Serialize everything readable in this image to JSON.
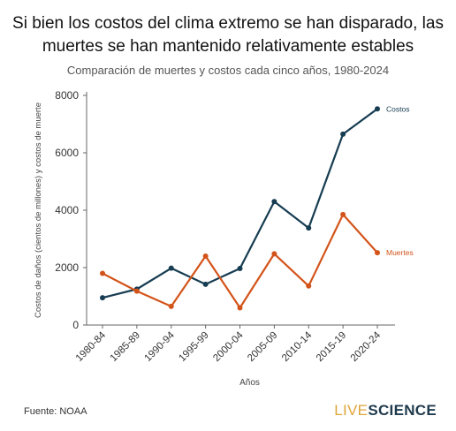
{
  "header": {
    "title_line1": "Si bien los costos del clima extremo se han disparado, las",
    "title_line2": "muertes se han mantenido relativamente estables",
    "subtitle": "Comparación de muertes y costos cada cinco años, 1980-2024"
  },
  "footer": {
    "source": "Fuente: NOAA",
    "logo_live": "LIVE",
    "logo_science": "SCIENCE"
  },
  "colors": {
    "costos": "#173d52",
    "muertes": "#d3541a",
    "axis": "#666666",
    "grid": "#eeeeee"
  },
  "chart_data": {
    "type": "line",
    "title": "Si bien los costos del clima extremo se han disparado, las muertes se han mantenido relativamente estables",
    "subtitle": "Comparación de muertes y costos cada cinco años, 1980-2024",
    "xlabel": "Años",
    "ylabel": "Costos de daños (cientos de millones) y costos de muerte",
    "categories": [
      "1980-84",
      "1985-89",
      "1990-94",
      "1995-99",
      "2000-04",
      "2005-09",
      "2010-14",
      "2015-19",
      "2020-24"
    ],
    "ylim": [
      0,
      8000
    ],
    "yticks": [
      0,
      2000,
      4000,
      6000,
      8000
    ],
    "grid": false,
    "legend": "direct labels at line ends",
    "series": [
      {
        "name": "Costos",
        "color": "#173d52",
        "values": [
          950,
          1250,
          1980,
          1420,
          1970,
          4300,
          3380,
          6650,
          7530
        ]
      },
      {
        "name": "Muertes",
        "color": "#d3541a",
        "values": [
          1800,
          1180,
          650,
          2400,
          600,
          2480,
          1360,
          3850,
          2520
        ]
      }
    ]
  }
}
